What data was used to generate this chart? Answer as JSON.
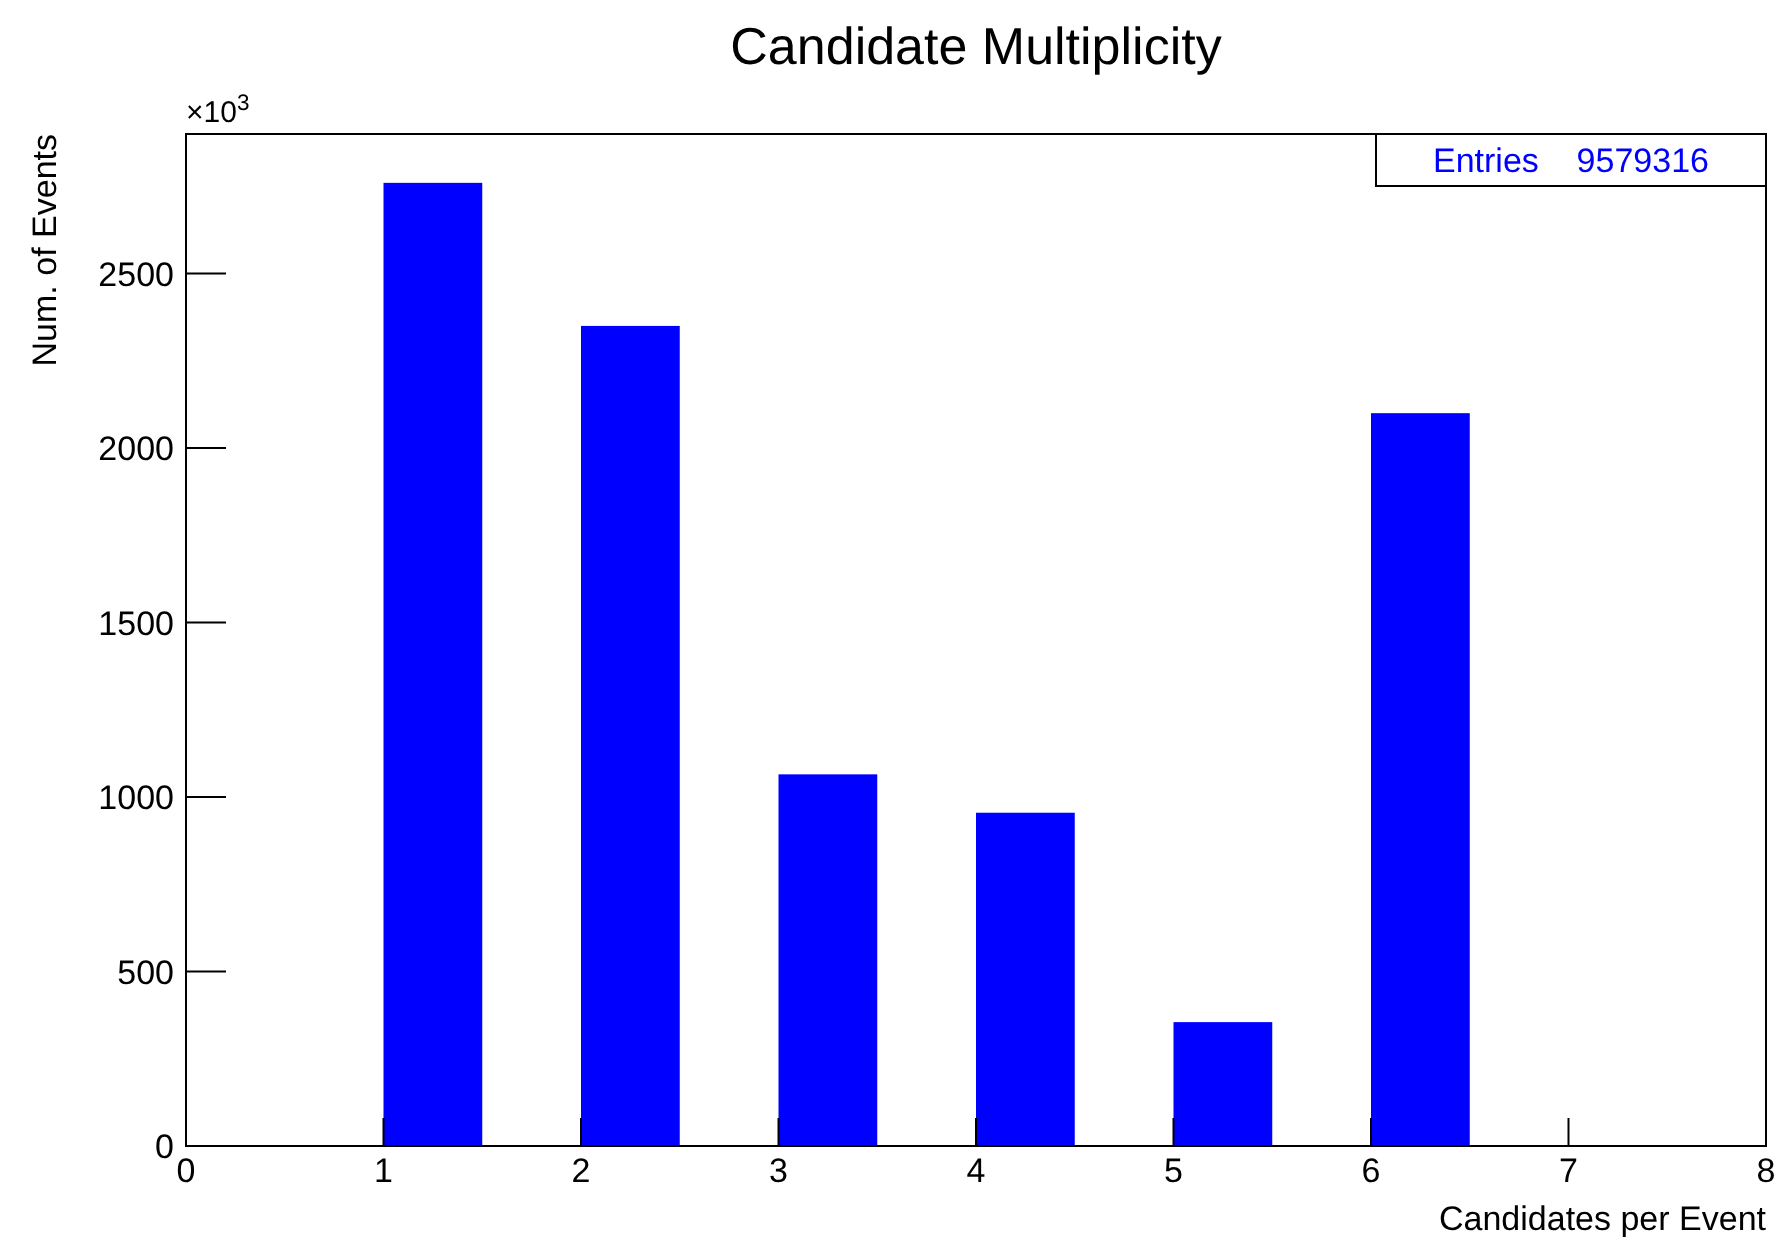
{
  "chart_data": {
    "type": "histogram",
    "title": "Candidate Multiplicity",
    "xlabel": "Candidates per Event",
    "ylabel": "Num. of Events",
    "annotations": [
      "×10$^{3}$",
      "Entries    9579316"
    ],
    "bins": [
      0,
      0.5,
      1,
      1.5,
      2,
      2.5,
      3,
      3.5,
      4,
      4.5,
      5,
      5.5,
      6,
      6.5,
      7,
      7.5,
      8
    ],
    "values": [
      0,
      0,
      2760,
      0,
      2350,
      0,
      1065,
      0,
      955,
      0,
      355,
      0,
      2100,
      0,
      0,
      0
    ],
    "color": "#0000ff",
    "xlim": [
      0,
      8
    ],
    "xticks": [
      0,
      1,
      2,
      3,
      4,
      5,
      6,
      7,
      8
    ],
    "ylim": [
      0,
      2900
    ],
    "yticks": [
      0,
      500,
      1000,
      1500,
      2000,
      2500
    ],
    "grid": false
  }
}
